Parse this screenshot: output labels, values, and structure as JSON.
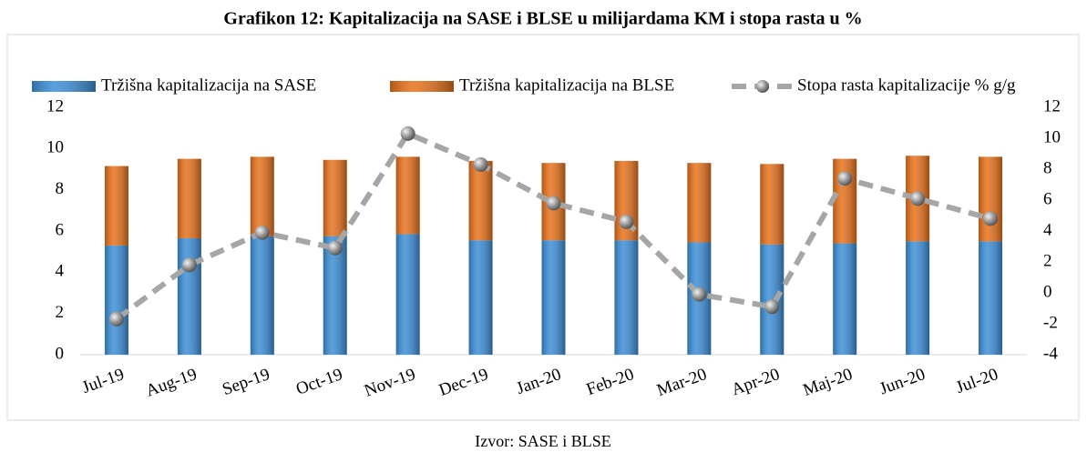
{
  "chart_data": {
    "type": "bar",
    "title": "Grafikon 12: Kapitalizacija na SASE i BLSE u milijardama KM i stopa rasta u %",
    "source": "Izvor: SASE i BLSE",
    "categories": [
      "Jul-19",
      "Aug-19",
      "Sep-19",
      "Oct-19",
      "Nov-19",
      "Dec-19",
      "Jan-20",
      "Feb-20",
      "Mar-20",
      "Apr-20",
      "Maj-20",
      "Jun-20",
      "Jul-20"
    ],
    "series": [
      {
        "name": "Tržišna kapitalizacija na SASE",
        "type": "bar",
        "color": "#3d8fd8",
        "values": [
          5.3,
          5.65,
          5.75,
          5.75,
          5.85,
          5.55,
          5.55,
          5.55,
          5.45,
          5.35,
          5.4,
          5.5,
          5.5
        ]
      },
      {
        "name": "Tržišna kapitalizacija na BLSE",
        "type": "bar",
        "color": "#e8721b",
        "values": [
          3.85,
          3.85,
          3.85,
          3.7,
          3.75,
          3.85,
          3.75,
          3.85,
          3.85,
          3.9,
          4.1,
          4.15,
          4.1
        ]
      },
      {
        "name": "Stopa rasta kapitalizacije % g/g",
        "type": "line",
        "axis": "y2",
        "color": "#a6a6a6",
        "values": [
          -1.7,
          1.8,
          3.9,
          2.9,
          10.3,
          8.3,
          5.8,
          4.6,
          -0.1,
          -0.9,
          7.4,
          6.1,
          4.8
        ]
      }
    ],
    "ylim": [
      0,
      12
    ],
    "yticks": [
      0,
      2,
      4,
      6,
      8,
      10,
      12
    ],
    "y2lim": [
      -4,
      12
    ],
    "y2ticks": [
      -4,
      -2,
      0,
      2,
      4,
      6,
      8,
      10,
      12
    ],
    "stacked": true,
    "legend": "top"
  }
}
